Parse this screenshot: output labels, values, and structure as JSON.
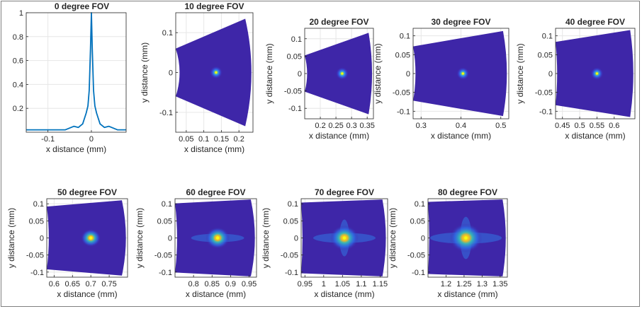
{
  "figure": {
    "panels": [
      {
        "id": "p0",
        "title": "0 degree FOV",
        "xlabel": "x distance (mm)",
        "ylabel": "",
        "xticks": [
          "-0.1",
          "0"
        ],
        "yticks": [
          "0.2",
          "0.4",
          "0.6",
          "0.8",
          "1"
        ]
      },
      {
        "id": "p10",
        "title": "10 degree FOV",
        "xlabel": "x distance (mm)",
        "ylabel": "y distance (mm)",
        "xticks": [
          "0.05",
          "0.1",
          "0.15",
          "0.2"
        ],
        "yticks": [
          "0.1",
          "0",
          "-0.1"
        ]
      },
      {
        "id": "p20",
        "title": "20 degree FOV",
        "xlabel": "x distance (mm)",
        "ylabel": "y distance (mm)",
        "xticks": [
          "0.2",
          "0.25",
          "0.3",
          "0.35"
        ],
        "yticks": [
          "0.1",
          "0.05",
          "0",
          "-0.05",
          "-0.1"
        ]
      },
      {
        "id": "p30",
        "title": "30 degree FOV",
        "xlabel": "x distance (mm)",
        "ylabel": "y distance (mm)",
        "xticks": [
          "0.3",
          "0.4",
          "0.5"
        ],
        "yticks": [
          "0.1",
          "0.05",
          "0",
          "-0.05",
          "-0.1"
        ]
      },
      {
        "id": "p40",
        "title": "40 degree FOV",
        "xlabel": "x distance (mm)",
        "ylabel": "y distance (mm)",
        "xticks": [
          "0.45",
          "0.5",
          "0.55",
          "0.6"
        ],
        "yticks": [
          "0.1",
          "0.05",
          "0",
          "-0.05",
          "-0.1"
        ]
      },
      {
        "id": "p50",
        "title": "50 degree FOV",
        "xlabel": "x distance (mm)",
        "ylabel": "y distance (mm)",
        "xticks": [
          "0.6",
          "0.65",
          "0.7",
          "0.75"
        ],
        "yticks": [
          "0.1",
          "0.05",
          "0",
          "-0.05",
          "-0.1"
        ]
      },
      {
        "id": "p60",
        "title": "60 degree FOV",
        "xlabel": "x distance (mm)",
        "ylabel": "y distance (mm)",
        "xticks": [
          "0.8",
          "0.85",
          "0.9",
          "0.95"
        ],
        "yticks": [
          "0.1",
          "0.05",
          "0",
          "-0.05",
          "-0.1"
        ]
      },
      {
        "id": "p70",
        "title": "70 degree FOV",
        "xlabel": "x distance (mm)",
        "ylabel": "y distance (mm)",
        "xticks": [
          "0.95",
          "1",
          "1.05",
          "1.1",
          "1.15"
        ],
        "yticks": [
          "0.1",
          "0.05",
          "0",
          "-0.05",
          "-0.1"
        ]
      },
      {
        "id": "p80",
        "title": "80 degree FOV",
        "xlabel": "x distance (mm)",
        "ylabel": "y distance (mm)",
        "xticks": [
          "1.2",
          "1.25",
          "1.3",
          "1.35"
        ],
        "yticks": [
          "0.1",
          "0.05",
          "0",
          "-0.05",
          "-0.1"
        ]
      }
    ]
  },
  "chart_data": [
    {
      "type": "line",
      "title": "0 degree FOV",
      "xlabel": "x distance (mm)",
      "ylabel": "",
      "xlim": [
        -0.15,
        0.08
      ],
      "ylim": [
        0,
        1
      ],
      "grid": true,
      "series": [
        {
          "color": "#0072bd",
          "x": [
            -0.15,
            -0.1,
            -0.06,
            -0.04,
            -0.03,
            -0.02,
            -0.012,
            -0.008,
            -0.005,
            -0.002,
            0,
            0.002,
            0.005,
            0.008,
            0.012,
            0.02,
            0.03,
            0.04,
            0.06,
            0.08
          ],
          "y": [
            0.02,
            0.02,
            0.02,
            0.05,
            0.04,
            0.07,
            0.16,
            0.22,
            0.35,
            0.7,
            1.0,
            0.7,
            0.35,
            0.22,
            0.16,
            0.07,
            0.04,
            0.05,
            0.02,
            0.02
          ]
        }
      ]
    },
    {
      "type": "heatmap",
      "title": "10 degree FOV",
      "xlabel": "x distance (mm)",
      "ylabel": "y distance (mm)",
      "xlim": [
        0.02,
        0.24
      ],
      "ylim": [
        -0.15,
        0.15
      ],
      "peak": [
        0.135,
        0
      ],
      "grid": true
    },
    {
      "type": "heatmap",
      "title": "20 degree FOV",
      "xlabel": "x distance (mm)",
      "ylabel": "y distance (mm)",
      "xlim": [
        0.15,
        0.37
      ],
      "ylim": [
        -0.13,
        0.13
      ],
      "peak": [
        0.27,
        0
      ],
      "grid": true
    },
    {
      "type": "heatmap",
      "title": "30 degree FOV",
      "xlabel": "x distance (mm)",
      "ylabel": "y distance (mm)",
      "xlim": [
        0.28,
        0.52
      ],
      "ylim": [
        -0.12,
        0.12
      ],
      "peak": [
        0.405,
        0
      ],
      "grid": true
    },
    {
      "type": "heatmap",
      "title": "40 degree FOV",
      "xlabel": "x distance (mm)",
      "ylabel": "y distance (mm)",
      "xlim": [
        0.43,
        0.66
      ],
      "ylim": [
        -0.12,
        0.12
      ],
      "peak": [
        0.55,
        0
      ],
      "grid": true
    },
    {
      "type": "heatmap",
      "title": "50 degree FOV",
      "xlabel": "x distance (mm)",
      "ylabel": "y distance (mm)",
      "xlim": [
        0.58,
        0.8
      ],
      "ylim": [
        -0.115,
        0.115
      ],
      "peak": [
        0.7,
        0
      ],
      "grid": true
    },
    {
      "type": "heatmap",
      "title": "60 degree FOV",
      "xlabel": "x distance (mm)",
      "ylabel": "y distance (mm)",
      "xlim": [
        0.75,
        0.97
      ],
      "ylim": [
        -0.115,
        0.115
      ],
      "peak": [
        0.865,
        0
      ],
      "grid": true
    },
    {
      "type": "heatmap",
      "title": "70 degree FOV",
      "xlabel": "x distance (mm)",
      "ylabel": "y distance (mm)",
      "xlim": [
        0.94,
        1.17
      ],
      "ylim": [
        -0.115,
        0.115
      ],
      "peak": [
        1.055,
        0
      ],
      "grid": true
    },
    {
      "type": "heatmap",
      "title": "80 degree FOV",
      "xlabel": "x distance (mm)",
      "ylabel": "y distance (mm)",
      "xlim": [
        1.15,
        1.37
      ],
      "ylim": [
        -0.115,
        0.115
      ],
      "peak": [
        1.255,
        0
      ],
      "grid": true
    }
  ],
  "colors": {
    "line": "#0072bd",
    "background": "#3e26a8",
    "mid": "#2e87f0",
    "hot": "#f9fb0e",
    "axis": "#262626",
    "grid": "#e6e6e6"
  }
}
